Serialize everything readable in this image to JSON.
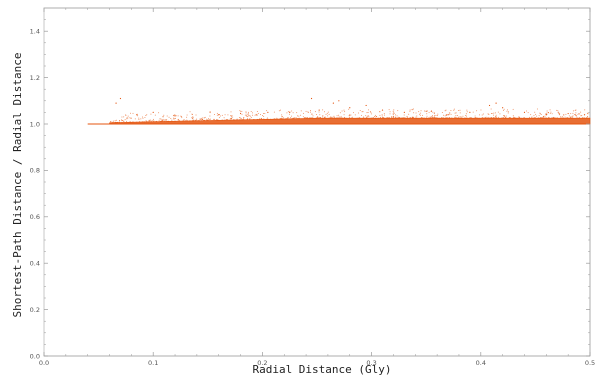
{
  "chart_data": {
    "type": "scatter",
    "title": "",
    "xlabel": "Radial Distance (Gly)",
    "ylabel": "Shortest-Path Distance / Radial Distance",
    "xlim": [
      0.0,
      0.5
    ],
    "ylim": [
      0.0,
      1.5
    ],
    "x_ticks": [
      "0.0",
      "0.1",
      "0.2",
      "0.3",
      "0.4",
      "0.5"
    ],
    "y_ticks": [
      "0.0",
      "0.2",
      "0.4",
      "0.6",
      "0.8",
      "1.0",
      "1.2",
      "1.4"
    ],
    "grid": false,
    "legend": "none",
    "colors": {
      "points": "#e4550f",
      "axes": "#999999"
    },
    "series": [
      {
        "baseline": {
          "x_start": 0.04,
          "x_end": 0.5,
          "y": 1.0
        },
        "band_envelope": {
          "x": [
            0.06,
            0.1,
            0.15,
            0.2,
            0.25,
            0.3,
            0.35,
            0.4,
            0.45,
            0.5
          ],
          "y_upper": [
            1.005,
            1.01,
            1.015,
            1.02,
            1.025,
            1.025,
            1.025,
            1.025,
            1.025,
            1.025
          ],
          "y_lower": [
            1.0,
            1.0,
            1.0,
            1.0,
            1.0,
            1.0,
            1.0,
            1.0,
            1.0,
            1.0
          ]
        },
        "outliers": [
          {
            "x": 0.066,
            "y": 1.09
          },
          {
            "x": 0.07,
            "y": 1.11
          },
          {
            "x": 0.085,
            "y": 1.04
          },
          {
            "x": 0.1,
            "y": 1.05
          },
          {
            "x": 0.12,
            "y": 1.035
          },
          {
            "x": 0.145,
            "y": 1.02
          },
          {
            "x": 0.16,
            "y": 1.04
          },
          {
            "x": 0.18,
            "y": 1.045
          },
          {
            "x": 0.205,
            "y": 1.05
          },
          {
            "x": 0.225,
            "y": 1.05
          },
          {
            "x": 0.245,
            "y": 1.11
          },
          {
            "x": 0.252,
            "y": 1.06
          },
          {
            "x": 0.265,
            "y": 1.09
          },
          {
            "x": 0.27,
            "y": 1.1
          },
          {
            "x": 0.28,
            "y": 1.07
          },
          {
            "x": 0.295,
            "y": 1.08
          },
          {
            "x": 0.31,
            "y": 1.06
          },
          {
            "x": 0.33,
            "y": 1.05
          },
          {
            "x": 0.35,
            "y": 1.055
          },
          {
            "x": 0.37,
            "y": 1.04
          },
          {
            "x": 0.39,
            "y": 1.05
          },
          {
            "x": 0.408,
            "y": 1.08
          },
          {
            "x": 0.414,
            "y": 1.09
          },
          {
            "x": 0.42,
            "y": 1.07
          },
          {
            "x": 0.44,
            "y": 1.05
          },
          {
            "x": 0.46,
            "y": 1.04
          },
          {
            "x": 0.48,
            "y": 1.045
          },
          {
            "x": 0.495,
            "y": 1.04
          }
        ]
      }
    ]
  }
}
